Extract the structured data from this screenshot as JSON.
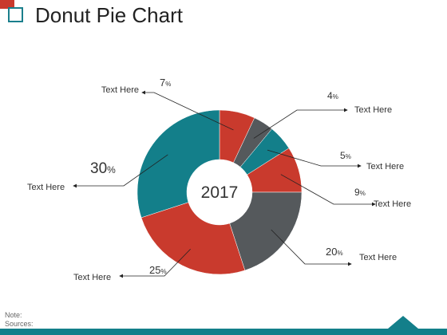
{
  "page": {
    "title": "Donut Pie Chart",
    "note_label": "Note:",
    "sources_label": "Sources:"
  },
  "colors": {
    "red": "#c93a2d",
    "gray": "#55595c",
    "teal": "#137f8a",
    "accent_corner": "#c93a2d",
    "footer": "#137f8a"
  },
  "chart_data": {
    "type": "pie",
    "title": "",
    "center_label": "2017",
    "slices": [
      {
        "label": "Text Here",
        "value": 7,
        "display": "7",
        "unit": "%",
        "color": "#c93a2d"
      },
      {
        "label": "Text Here",
        "value": 4,
        "display": "4",
        "unit": "%",
        "color": "#55595c"
      },
      {
        "label": "Text Here",
        "value": 5,
        "display": "5",
        "unit": "%",
        "color": "#137f8a"
      },
      {
        "label": "Text Here",
        "value": 9,
        "display": "9",
        "unit": "%",
        "color": "#c93a2d"
      },
      {
        "label": "Text Here",
        "value": 20,
        "display": "20",
        "unit": "%",
        "color": "#55595c"
      },
      {
        "label": "Text Here",
        "value": 25,
        "display": "25",
        "unit": "%",
        "color": "#c93a2d"
      },
      {
        "label": "Text Here",
        "value": 30,
        "display": "30",
        "unit": "%",
        "color": "#137f8a"
      }
    ]
  }
}
